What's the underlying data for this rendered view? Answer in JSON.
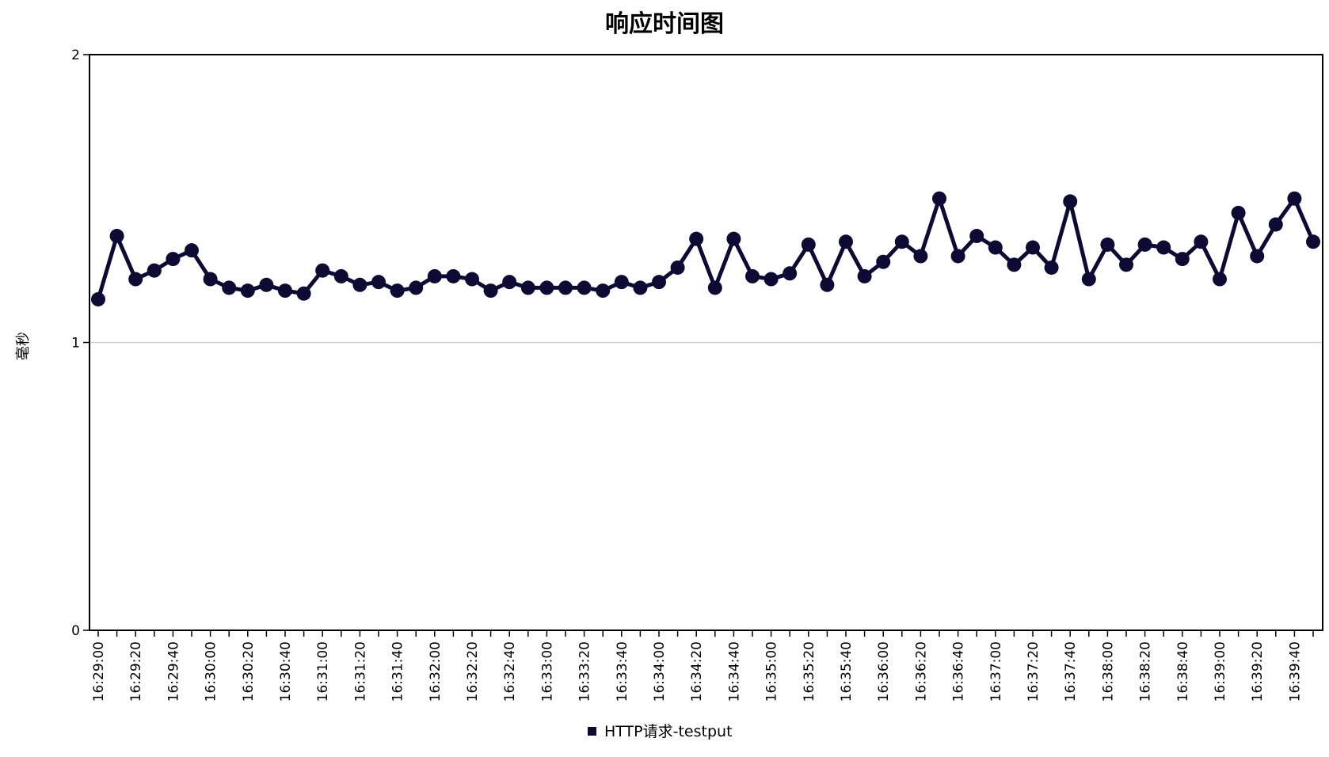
{
  "chart_data": {
    "type": "line",
    "title": "响应时间图",
    "xlabel": "",
    "ylabel": "毫秒",
    "ylim": [
      0,
      2
    ],
    "yticks": [
      "0",
      "1",
      "2"
    ],
    "xticks": [
      "16:29:00",
      "16:29:20",
      "16:29:40",
      "16:30:00",
      "16:30:20",
      "16:30:40",
      "16:31:00",
      "16:31:20",
      "16:31:40",
      "16:32:00",
      "16:32:20",
      "16:32:40",
      "16:33:00",
      "16:33:20",
      "16:33:40",
      "16:34:00",
      "16:34:20",
      "16:34:40",
      "16:35:00",
      "16:35:20",
      "16:35:40",
      "16:36:00",
      "16:36:20",
      "16:36:40",
      "16:37:00",
      "16:37:20",
      "16:37:40",
      "16:38:00",
      "16:38:20",
      "16:38:40",
      "16:39:00",
      "16:39:20",
      "16:39:40"
    ],
    "grid": "horizontal",
    "legend_position": "bottom",
    "series": [
      {
        "name": "HTTP请求-testput",
        "color": "#0d0b33",
        "values": [
          1.15,
          1.37,
          1.22,
          1.25,
          1.29,
          1.32,
          1.22,
          1.19,
          1.18,
          1.2,
          1.18,
          1.17,
          1.25,
          1.23,
          1.2,
          1.21,
          1.18,
          1.19,
          1.23,
          1.23,
          1.22,
          1.18,
          1.21,
          1.19,
          1.19,
          1.19,
          1.19,
          1.18,
          1.21,
          1.19,
          1.21,
          1.26,
          1.36,
          1.19,
          1.36,
          1.23,
          1.22,
          1.24,
          1.34,
          1.2,
          1.35,
          1.23,
          1.28,
          1.35,
          1.3,
          1.5,
          1.3,
          1.37,
          1.33,
          1.27,
          1.33,
          1.26,
          1.49,
          1.22,
          1.34,
          1.27,
          1.34,
          1.33,
          1.29,
          1.35,
          1.22,
          1.45,
          1.3,
          1.41,
          1.5,
          1.35
        ]
      }
    ]
  }
}
